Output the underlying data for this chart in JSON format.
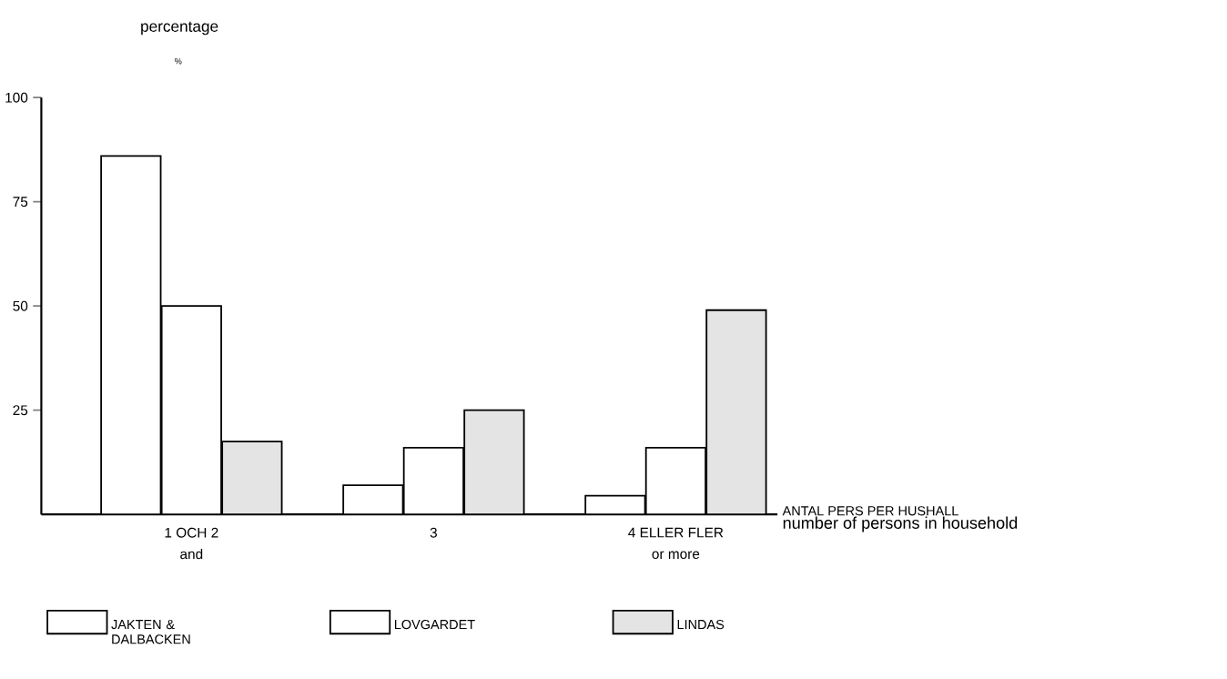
{
  "chart_data": {
    "type": "bar",
    "ylabel": "percentage",
    "xlabel": "ANTAL PERS PER HUSHALL",
    "categories": [
      "1 OCH 2",
      "3",
      "4 ELLER FLER"
    ],
    "series": [
      {
        "name": "JAKTEN & DALBACKEN",
        "color": "#ffffff",
        "values": [
          86,
          7,
          4.5
        ]
      },
      {
        "name": "LOVGARDET",
        "color": "#ffffff",
        "values": [
          50,
          16,
          16
        ]
      },
      {
        "name": "LINDAS",
        "color": "#e4e4e4",
        "values": [
          17.5,
          25,
          49
        ]
      }
    ],
    "annotations": [
      "%",
      "and",
      "or more",
      "number of persons in household"
    ],
    "ylim": [
      0,
      100
    ],
    "yticks": [
      25,
      50,
      75,
      100
    ],
    "grid": false,
    "legend": "bottom"
  }
}
